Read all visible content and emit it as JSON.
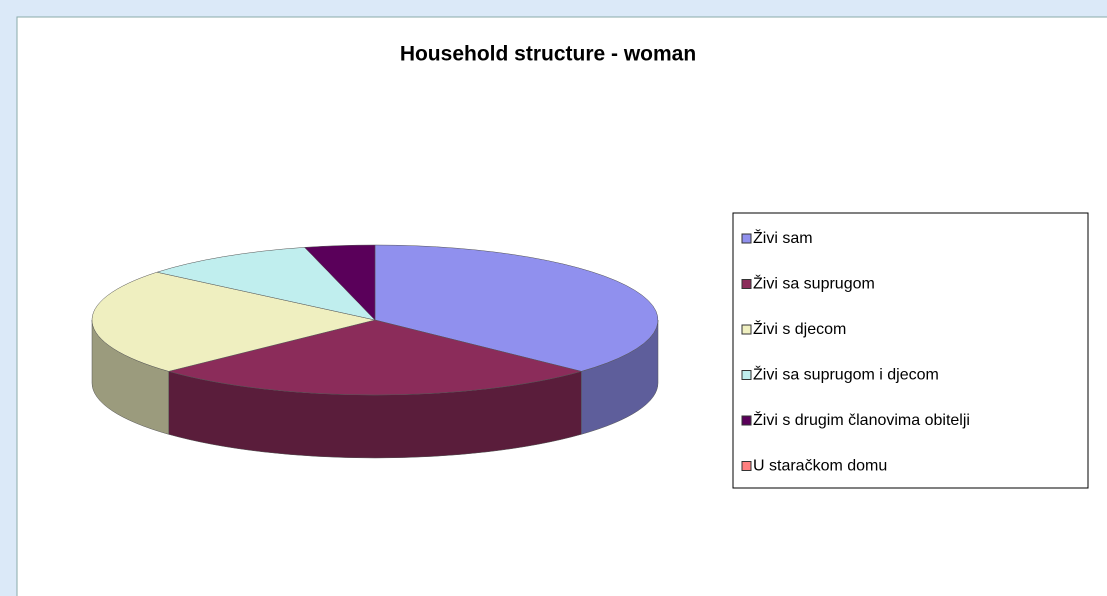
{
  "chart_data": {
    "type": "pie",
    "title": "Household structure - woman",
    "categories": [
      "Živi sam",
      "Živi sa suprugom",
      "Živi s djecom",
      "Živi sa suprugom i djecom",
      "Živi s drugim članovima obitelji",
      "U staračkom domu"
    ],
    "values": [
      37,
      26,
      23,
      10,
      4,
      0
    ],
    "colors": [
      "#9090ee",
      "#8b2c5a",
      "#efefc0",
      "#c0eeee",
      "#5a005a",
      "#ff8080"
    ],
    "legend": "right"
  }
}
